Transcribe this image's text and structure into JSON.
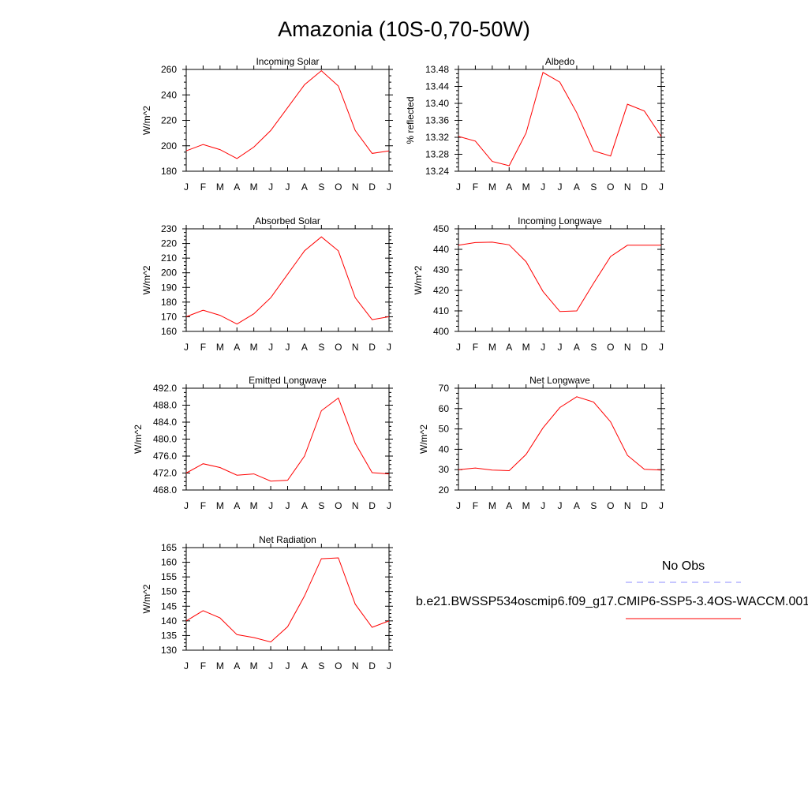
{
  "page": {
    "title": "Amazonia (10S-0,70-50W)"
  },
  "legend": {
    "entries": [
      {
        "label": "No Obs",
        "color": "#8c8cff",
        "dash": "dashed"
      },
      {
        "label": "b.e21.BWSSP534oscmip6.f09_g17.CMIP6-SSP5-3.4OS-WACCM.001",
        "color": "#ff0000",
        "dash": "solid"
      }
    ]
  },
  "chart_data": [
    {
      "type": "line",
      "title": "Incoming Solar",
      "ylabel": "W/m^2",
      "categories": [
        "J",
        "F",
        "M",
        "A",
        "M",
        "J",
        "J",
        "A",
        "S",
        "O",
        "N",
        "D",
        "J"
      ],
      "ylim": [
        180,
        260
      ],
      "yticks": [
        180,
        200,
        220,
        240,
        260
      ],
      "ytick_labels": [
        "180",
        "200",
        "220",
        "240",
        "260"
      ],
      "series": [
        {
          "values": [
            196,
            201,
            197,
            190,
            199,
            212,
            230,
            248,
            259,
            247,
            212,
            194,
            196
          ],
          "color": "#ff0000"
        }
      ]
    },
    {
      "type": "line",
      "title": "Albedo",
      "ylabel": "% reflected",
      "categories": [
        "J",
        "F",
        "M",
        "A",
        "M",
        "J",
        "J",
        "A",
        "S",
        "O",
        "N",
        "D",
        "J"
      ],
      "ylim": [
        13.24,
        13.48
      ],
      "yticks": [
        13.24,
        13.28,
        13.32,
        13.36,
        13.4,
        13.44,
        13.48
      ],
      "ytick_labels": [
        "13.24",
        "13.28",
        "13.32",
        "13.36",
        "13.40",
        "13.44",
        "13.48"
      ],
      "series": [
        {
          "values": [
            13.322,
            13.311,
            13.263,
            13.253,
            13.33,
            13.473,
            13.45,
            13.378,
            13.288,
            13.276,
            13.398,
            13.382,
            13.322
          ],
          "color": "#ff0000"
        }
      ]
    },
    {
      "type": "line",
      "title": "Absorbed Solar",
      "ylabel": "W/m^2",
      "categories": [
        "J",
        "F",
        "M",
        "A",
        "M",
        "J",
        "J",
        "A",
        "S",
        "O",
        "N",
        "D",
        "J"
      ],
      "ylim": [
        160,
        230
      ],
      "yticks": [
        160,
        170,
        180,
        190,
        200,
        210,
        220,
        230
      ],
      "ytick_labels": [
        "160",
        "170",
        "180",
        "190",
        "200",
        "210",
        "220",
        "230"
      ],
      "series": [
        {
          "values": [
            170,
            174.5,
            171,
            165,
            172,
            183,
            199,
            215,
            224.5,
            215,
            183,
            168,
            170
          ],
          "color": "#ff0000"
        }
      ]
    },
    {
      "type": "line",
      "title": "Incoming Longwave",
      "ylabel": "W/m^2",
      "categories": [
        "J",
        "F",
        "M",
        "A",
        "M",
        "J",
        "J",
        "A",
        "S",
        "O",
        "N",
        "D",
        "J"
      ],
      "ylim": [
        400,
        450
      ],
      "yticks": [
        400,
        410,
        420,
        430,
        440,
        450
      ],
      "ytick_labels": [
        "400",
        "410",
        "420",
        "430",
        "440",
        "450"
      ],
      "series": [
        {
          "values": [
            442,
            443.3,
            443.5,
            442.2,
            434,
            419.5,
            409.7,
            410,
            423.5,
            436.5,
            442,
            442,
            442
          ],
          "color": "#ff0000"
        }
      ]
    },
    {
      "type": "line",
      "title": "Emitted Longwave",
      "ylabel": "W/m^2",
      "categories": [
        "J",
        "F",
        "M",
        "A",
        "M",
        "J",
        "J",
        "A",
        "S",
        "O",
        "N",
        "D",
        "J"
      ],
      "ylim": [
        468,
        492
      ],
      "yticks": [
        468,
        472,
        476,
        480,
        484,
        488,
        492
      ],
      "ytick_labels": [
        "468.0",
        "472.0",
        "476.0",
        "480.0",
        "484.0",
        "488.0",
        "492.0"
      ],
      "series": [
        {
          "values": [
            472,
            474.2,
            473.3,
            471.5,
            471.8,
            470.1,
            470.3,
            476,
            486.7,
            489.7,
            479,
            472.1,
            471.8
          ],
          "color": "#ff0000"
        }
      ]
    },
    {
      "type": "line",
      "title": "Net Longwave",
      "ylabel": "W/m^2",
      "categories": [
        "J",
        "F",
        "M",
        "A",
        "M",
        "J",
        "J",
        "A",
        "S",
        "O",
        "N",
        "D",
        "J"
      ],
      "ylim": [
        20,
        70
      ],
      "yticks": [
        20,
        30,
        40,
        50,
        60,
        70
      ],
      "ytick_labels": [
        "20",
        "30",
        "40",
        "50",
        "60",
        "70"
      ],
      "series": [
        {
          "values": [
            30,
            30.8,
            29.8,
            29.5,
            37.5,
            50.5,
            60.5,
            65.8,
            63.2,
            53.5,
            37,
            30.2,
            29.8
          ],
          "color": "#ff0000"
        }
      ]
    },
    {
      "type": "line",
      "title": "Net Radiation",
      "ylabel": "W/m^2",
      "categories": [
        "J",
        "F",
        "M",
        "A",
        "M",
        "J",
        "J",
        "A",
        "S",
        "O",
        "N",
        "D",
        "J"
      ],
      "ylim": [
        130,
        165
      ],
      "yticks": [
        130,
        135,
        140,
        145,
        150,
        155,
        160,
        165
      ],
      "ytick_labels": [
        "130",
        "135",
        "140",
        "145",
        "150",
        "155",
        "160",
        "165"
      ],
      "series": [
        {
          "values": [
            140,
            143.5,
            141,
            135.3,
            134.3,
            132.8,
            138,
            148.5,
            161.2,
            161.5,
            145.7,
            137.8,
            140
          ],
          "color": "#ff0000"
        }
      ]
    }
  ]
}
